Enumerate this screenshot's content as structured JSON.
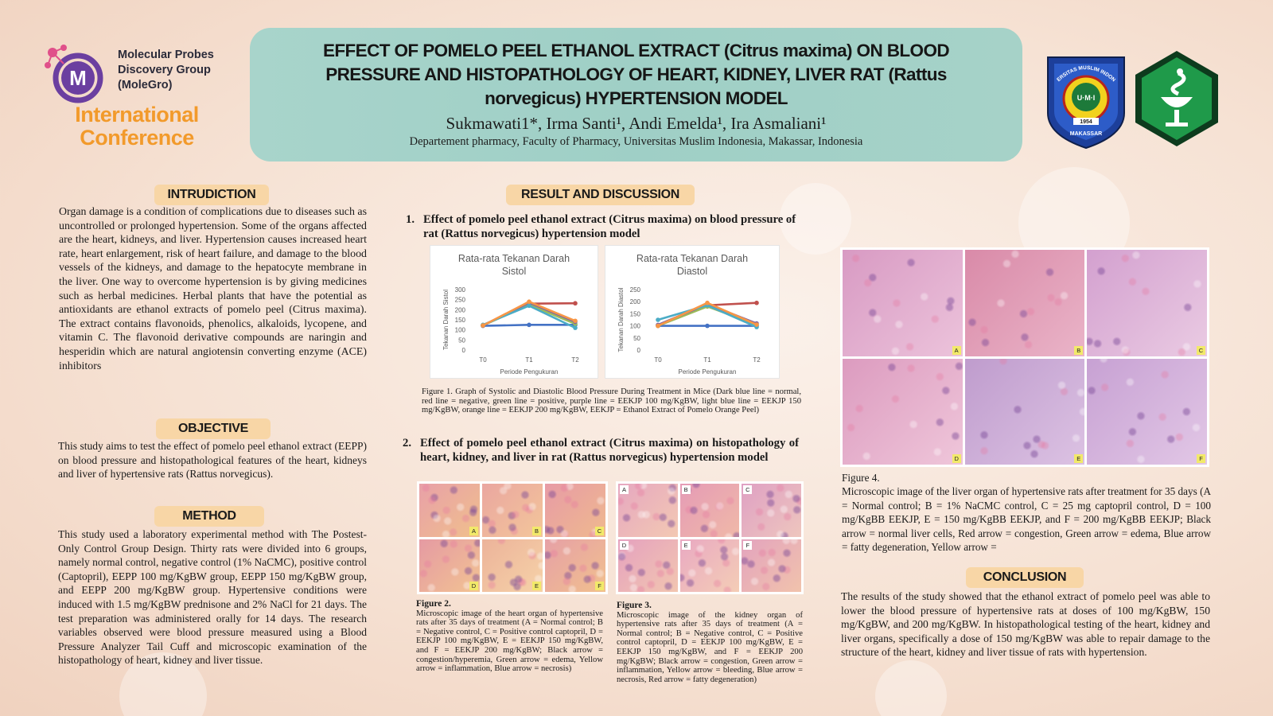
{
  "header": {
    "org_name": "Molecular Probes Discovery Group (MoleGro)",
    "org_logo_letter": "M",
    "conference_line1": "International",
    "conference_line2": "Conference",
    "title": "EFFECT OF POMELO PEEL ETHANOL EXTRACT (Citrus maxima) ON BLOOD PRESSURE AND HISTOPATHOLOGY OF HEART, KIDNEY, LIVER RAT (Rattus norvegicus) HYPERTENSION MODEL",
    "authors": "Sukmawati1*, Irma Santi¹, Andi Emelda¹, Ira Asmaliani¹",
    "affiliation": "Departement pharmacy, Faculty of Pharmacy, Universitas Muslim Indonesia, Makassar, Indonesia",
    "univ_logo_text_top": "UNIVERSITAS MUSLIM INDONESIA",
    "univ_logo_text_bottom": "MAKASSAR",
    "univ_logo_center": "U·M·I",
    "univ_logo_year": "1954",
    "colors": {
      "band": "#a8d4cb",
      "accent": "#f29a2b",
      "heading_bg": "#f8d6a6",
      "pharm_green": "#1f9a4a"
    }
  },
  "introduction": {
    "heading": "INTRUDICTION",
    "text": "Organ damage is a condition of complications due to diseases such as uncontrolled or prolonged hypertension. Some of the organs affected are the heart, kidneys, and liver. Hypertension causes increased heart rate, heart enlargement, risk of heart failure, and damage to the blood vessels of the kidneys, and damage to the hepatocyte membrane in the liver. One way to overcome hypertension is by giving medicines such as herbal medicines. Herbal plants that have the potential as antioxidants are ethanol extracts of pomelo peel (Citrus maxima). The extract contains flavonoids, phenolics, alkaloids, lycopene, and vitamin C. The flavonoid derivative compounds are naringin and hesperidin which are natural angiotensin converting enzyme (ACE) inhibitors"
  },
  "objective": {
    "heading": "OBJECTIVE",
    "text": "This study aims to test the effect of pomelo peel ethanol extract (EEPP) on blood pressure and histopathological features of the heart, kidneys and liver of hypertensive rats (Rattus norvegicus)."
  },
  "method": {
    "heading": "METHOD",
    "text": "This study used a laboratory experimental method with The Postest-Only Control Group Design. Thirty rats were divided into 6 groups, namely normal control, negative control (1% NaCMC), positive control (Captopril), EEPP 100 mg/KgBW group, EEPP 150 mg/KgBW group, and EEPP 200 mg/KgBW group. Hypertensive conditions were induced with 1.5 mg/KgBW prednisone and 2% NaCl for 21 days. The test preparation was administered orally for 14 days. The research variables observed were blood pressure measured using a Blood Pressure Analyzer Tail Cuff and microscopic examination of the histopathology of heart, kidney and liver tissue."
  },
  "results": {
    "heading": "RESULT AND DISCUSSION",
    "sub1_num": "1.",
    "sub1": "Effect of pomelo peel ethanol extract (Citrus maxima) on blood pressure of rat (Rattus norvegicus) hypertension model",
    "fig1_caption": "Figure 1. Graph of Systolic and Diastolic Blood Pressure During Treatment in Mice (Dark blue line = normal, red line = negative, green line = positive, purple line = EEKJP 100 mg/KgBW, light blue line = EEKJP 150 mg/KgBW, orange line = EEKJP 200 mg/KgBW, EEKJP = Ethanol Extract of Pomelo Orange Peel)",
    "sub2_num": "2.",
    "sub2": "Effect of pomelo peel ethanol extract (Citrus maxima) on histopathology of heart, kidney, and liver in rat (Rattus norvegicus) hypertension model",
    "fig2_label": "Figure 2.",
    "fig2_caption": "Microscopic image of the heart organ of hypertensive rats after 35 days of treatment (A = Normal control; B = Negative control, C = Positive control captopril, D = EEKJP 100 mg/KgBW, E = EEKJP 150 mg/KgBW, and F = EEKJP 200 mg/KgBW; Black arrow = congestion/hyperemia, Green arrow = edema, Yellow arrow = inflammation, Blue arrow = necrosis)",
    "fig3_label": "Figure 3.",
    "fig3_caption": "Microscopic image of the kidney organ of hypertensive rats after 35 days of treatment (A = Normal control; B = Negative control, C = Positive control captopril, D = EEKJP 100 mg/KgBW, E = EEKJP 150 mg/KgBW, and F = EEKJP 200 mg/KgBW; Black arrow = congestion, Green arrow = inflammation, Yellow arrow = bleeding, Blue arrow = necrosis, Red arrow = fatty degeneration)",
    "fig4_label": "Figure 4.",
    "fig4_caption": "Microscopic image of the liver organ of hypertensive rats after treatment for 35 days (A = Normal control; B = 1% NaCMC control, C = 25 mg captopril control, D = 100 mg/KgBB EEKJP, E = 150 mg/KgBB EEKJP, and F = 200 mg/KgBB EEKJP; Black arrow = normal liver cells, Red arrow = congestion, Green arrow = edema, Blue arrow = fatty degeneration, Yellow arrow =",
    "panel_labels": [
      "A",
      "B",
      "C",
      "D",
      "E",
      "F"
    ]
  },
  "conclusion": {
    "heading": "CONCLUSION",
    "text": "The results of the study showed that the ethanol extract of pomelo peel was able to lower the blood pressure of hypertensive rats at doses of 100 mg/KgBW, 150 mg/KgBW, and 200 mg/KgBW. In histopathological testing of the heart, kidney and liver organs, specifically a dose of 150 mg/KgBW was able to repair damage to the structure of the heart, kidney and liver tissue of rats with hypertension."
  },
  "chart_data": [
    {
      "type": "line",
      "title": "Rata-rata Tekanan Darah Sistol",
      "xlabel": "Periode Pengukuran",
      "ylabel": "Tekanan Darah Sistol",
      "categories": [
        "T0",
        "T1",
        "T2"
      ],
      "ylim": [
        0,
        300
      ],
      "yticks": [
        0,
        50,
        100,
        150,
        200,
        250,
        300
      ],
      "series": [
        {
          "color": "#4472c4",
          "values": [
            120,
            125,
            125
          ]
        },
        {
          "color": "#c0504d",
          "values": [
            122,
            230,
            232
          ]
        },
        {
          "color": "#9bbb59",
          "values": [
            122,
            225,
            130
          ]
        },
        {
          "color": "#8064a2",
          "values": [
            122,
            235,
            140
          ]
        },
        {
          "color": "#4bacc6",
          "values": [
            125,
            220,
            110
          ]
        },
        {
          "color": "#f79646",
          "values": [
            122,
            240,
            145
          ]
        }
      ]
    },
    {
      "type": "line",
      "title": "Rata-rata Tekanan Darah Diastol",
      "xlabel": "Periode Pengukuran",
      "ylabel": "Tekanan Darah Diastol",
      "categories": [
        "T0",
        "T1",
        "T2"
      ],
      "ylim": [
        0,
        250
      ],
      "yticks": [
        0,
        50,
        100,
        150,
        200,
        250
      ],
      "series": [
        {
          "color": "#4472c4",
          "values": [
            100,
            100,
            100
          ]
        },
        {
          "color": "#c0504d",
          "values": [
            102,
            185,
            195
          ]
        },
        {
          "color": "#9bbb59",
          "values": [
            100,
            180,
            105
          ]
        },
        {
          "color": "#8064a2",
          "values": [
            104,
            190,
            110
          ]
        },
        {
          "color": "#4bacc6",
          "values": [
            125,
            185,
            95
          ]
        },
        {
          "color": "#f79646",
          "values": [
            100,
            195,
            105
          ]
        }
      ]
    }
  ]
}
